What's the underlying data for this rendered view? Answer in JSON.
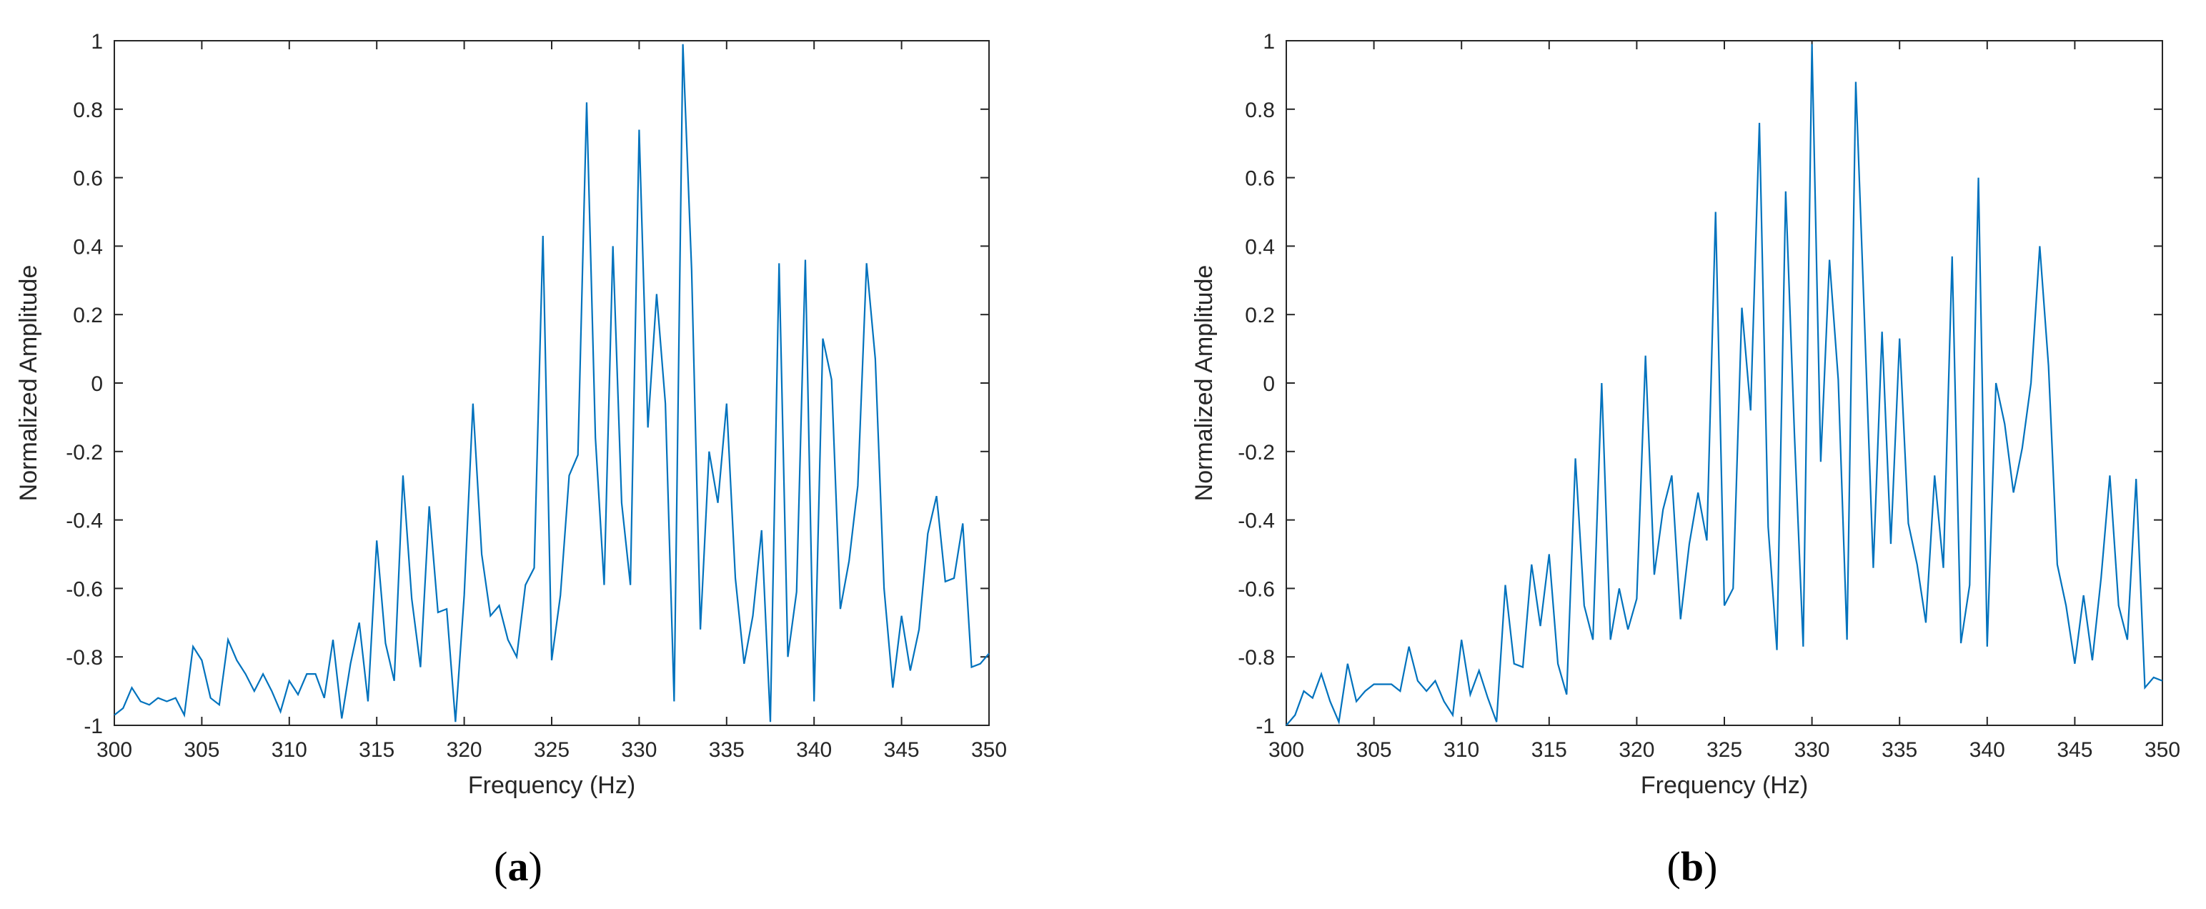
{
  "colors": {
    "line": "#0072BD",
    "axes": "#262626",
    "background": "#ffffff"
  },
  "chart_data": [
    {
      "type": "line",
      "panel_label": "(a)",
      "xlabel": "Frequency (Hz)",
      "ylabel": "Normalized Amplitude",
      "xlim": [
        300,
        350
      ],
      "ylim": [
        -1,
        1
      ],
      "xticks": [
        300,
        305,
        310,
        315,
        320,
        325,
        330,
        335,
        340,
        345,
        350
      ],
      "yticks": [
        -1,
        -0.8,
        -0.6,
        -0.4,
        -0.2,
        0,
        0.2,
        0.4,
        0.6,
        0.8,
        1
      ],
      "xtick_labels": [
        "300",
        "305",
        "310",
        "315",
        "320",
        "325",
        "330",
        "335",
        "340",
        "345",
        "350"
      ],
      "ytick_labels": [
        "-1",
        "-0.8",
        "-0.6",
        "-0.4",
        "-0.2",
        "0",
        "0.2",
        "0.4",
        "0.6",
        "0.8",
        "1"
      ],
      "grid": false,
      "series": [
        {
          "x": [
            300,
            300.5,
            301,
            301.5,
            302,
            302.5,
            303,
            303.5,
            304,
            304.5,
            305,
            305.5,
            306,
            306.5,
            307,
            307.5,
            308,
            308.5,
            309,
            309.5,
            310,
            310.5,
            311,
            311.5,
            312,
            312.5,
            313,
            313.5,
            314,
            314.5,
            315,
            315.5,
            316,
            316.5,
            317,
            317.5,
            318,
            318.5,
            319,
            319.5,
            320,
            320.5,
            321,
            321.5,
            322,
            322.5,
            323,
            323.5,
            324,
            324.5,
            325,
            325.5,
            326,
            326.5,
            327,
            327.5,
            328,
            328.5,
            329,
            329.5,
            330,
            330.5,
            331,
            331.5,
            332,
            332.5,
            333,
            333.5,
            334,
            334.5,
            335,
            335.5,
            336,
            336.5,
            337,
            337.5,
            338,
            338.5,
            339,
            339.5,
            340,
            340.5,
            341,
            341.5,
            342,
            342.5,
            343,
            343.5,
            344,
            344.5,
            345,
            345.5,
            346,
            346.5,
            347,
            347.5,
            348,
            348.5,
            349,
            349.5,
            350
          ],
          "y": [
            -0.97,
            -0.95,
            -0.89,
            -0.93,
            -0.94,
            -0.92,
            -0.93,
            -0.92,
            -0.97,
            -0.77,
            -0.81,
            -0.92,
            -0.94,
            -0.75,
            -0.81,
            -0.85,
            -0.9,
            -0.85,
            -0.9,
            -0.96,
            -0.87,
            -0.91,
            -0.85,
            -0.85,
            -0.92,
            -0.75,
            -0.98,
            -0.82,
            -0.7,
            -0.93,
            -0.46,
            -0.76,
            -0.87,
            -0.27,
            -0.63,
            -0.83,
            -0.36,
            -0.67,
            -0.66,
            -0.99,
            -0.62,
            -0.06,
            -0.5,
            -0.68,
            -0.65,
            -0.75,
            -0.8,
            -0.59,
            -0.54,
            0.43,
            -0.81,
            -0.62,
            -0.27,
            -0.21,
            0.82,
            -0.16,
            -0.59,
            0.4,
            -0.35,
            -0.59,
            0.74,
            -0.13,
            0.26,
            -0.06,
            -0.93,
            0.99,
            0.33,
            -0.72,
            -0.2,
            -0.35,
            -0.06,
            -0.57,
            -0.82,
            -0.68,
            -0.43,
            -0.99,
            0.35,
            -0.8,
            -0.61,
            0.36,
            -0.93,
            0.13,
            0.01,
            -0.66,
            -0.52,
            -0.3,
            0.35,
            0.07,
            -0.6,
            -0.89,
            -0.68,
            -0.84,
            -0.72,
            -0.44,
            -0.33,
            -0.58,
            -0.57,
            -0.41,
            -0.83,
            -0.82,
            -0.79
          ]
        }
      ]
    },
    {
      "type": "line",
      "panel_label": "(b)",
      "xlabel": "Frequency (Hz)",
      "ylabel": "Normalized Amplitude",
      "xlim": [
        300,
        350
      ],
      "ylim": [
        -1,
        1
      ],
      "xticks": [
        300,
        305,
        310,
        315,
        320,
        325,
        330,
        335,
        340,
        345,
        350
      ],
      "yticks": [
        -1,
        -0.8,
        -0.6,
        -0.4,
        -0.2,
        0,
        0.2,
        0.4,
        0.6,
        0.8,
        1
      ],
      "xtick_labels": [
        "300",
        "305",
        "310",
        "315",
        "320",
        "325",
        "330",
        "335",
        "340",
        "345",
        "350"
      ],
      "ytick_labels": [
        "-1",
        "-0.8",
        "-0.6",
        "-0.4",
        "-0.2",
        "0",
        "0.2",
        "0.4",
        "0.6",
        "0.8",
        "1"
      ],
      "grid": false,
      "series": [
        {
          "x": [
            300,
            300.5,
            301,
            301.5,
            302,
            302.5,
            303,
            303.5,
            304,
            304.5,
            305,
            305.5,
            306,
            306.5,
            307,
            307.5,
            308,
            308.5,
            309,
            309.5,
            310,
            310.5,
            311,
            311.5,
            312,
            312.5,
            313,
            313.5,
            314,
            314.5,
            315,
            315.5,
            316,
            316.5,
            317,
            317.5,
            318,
            318.5,
            319,
            319.5,
            320,
            320.5,
            321,
            321.5,
            322,
            322.5,
            323,
            323.5,
            324,
            324.5,
            325,
            325.5,
            326,
            326.5,
            327,
            327.5,
            328,
            328.5,
            329,
            329.5,
            330,
            330.5,
            331,
            331.5,
            332,
            332.5,
            333,
            333.5,
            334,
            334.5,
            335,
            335.5,
            336,
            336.5,
            337,
            337.5,
            338,
            338.5,
            339,
            339.5,
            340,
            340.5,
            341,
            341.5,
            342,
            342.5,
            343,
            343.5,
            344,
            344.5,
            345,
            345.5,
            346,
            346.5,
            347,
            347.5,
            348,
            348.5,
            349,
            349.5,
            350
          ],
          "y": [
            -1.0,
            -0.97,
            -0.9,
            -0.92,
            -0.85,
            -0.93,
            -0.99,
            -0.82,
            -0.93,
            -0.9,
            -0.88,
            -0.88,
            -0.88,
            -0.9,
            -0.77,
            -0.87,
            -0.9,
            -0.87,
            -0.93,
            -0.97,
            -0.75,
            -0.91,
            -0.84,
            -0.92,
            -0.99,
            -0.59,
            -0.82,
            -0.83,
            -0.53,
            -0.71,
            -0.5,
            -0.82,
            -0.91,
            -0.22,
            -0.65,
            -0.75,
            0.0,
            -0.75,
            -0.6,
            -0.72,
            -0.63,
            0.08,
            -0.56,
            -0.37,
            -0.27,
            -0.69,
            -0.47,
            -0.32,
            -0.46,
            0.5,
            -0.65,
            -0.6,
            0.22,
            -0.08,
            0.76,
            -0.42,
            -0.78,
            0.56,
            -0.15,
            -0.77,
            0.99,
            -0.23,
            0.36,
            0.01,
            -0.75,
            0.88,
            0.18,
            -0.54,
            0.15,
            -0.47,
            0.13,
            -0.41,
            -0.53,
            -0.7,
            -0.27,
            -0.54,
            0.37,
            -0.76,
            -0.59,
            0.6,
            -0.77,
            0.0,
            -0.12,
            -0.32,
            -0.19,
            0.0,
            0.4,
            0.05,
            -0.53,
            -0.65,
            -0.82,
            -0.62,
            -0.81,
            -0.57,
            -0.27,
            -0.65,
            -0.75,
            -0.28,
            -0.89,
            -0.86,
            -0.87
          ]
        }
      ]
    }
  ]
}
